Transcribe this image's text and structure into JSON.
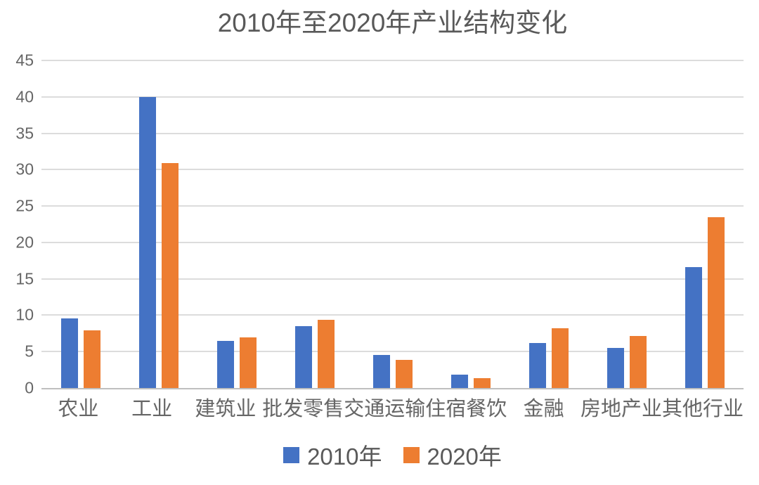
{
  "page": {
    "background": "#ffffff"
  },
  "chart_data": {
    "type": "bar",
    "title": "2010年至2020年产业结构变化",
    "xlabel": "",
    "ylabel": "",
    "categories": [
      "农业",
      "工业",
      "建筑业",
      "批发零售",
      "交通运输",
      "住宿餐饮",
      "金融",
      "房地产业",
      "其他行业"
    ],
    "series": [
      {
        "name": "2010年",
        "color": "#4472C4",
        "values": [
          9.6,
          40,
          6.5,
          8.5,
          4.5,
          1.8,
          6.2,
          5.5,
          16.6
        ]
      },
      {
        "name": "2020年",
        "color": "#ED7D31",
        "values": [
          7.9,
          30.9,
          7.0,
          9.4,
          3.9,
          1.4,
          8.2,
          7.1,
          23.5
        ]
      }
    ],
    "ylim": [
      0,
      45
    ],
    "yticks": [
      0,
      5,
      10,
      15,
      20,
      25,
      30,
      35,
      40,
      45
    ],
    "grid": true,
    "legend_position": "bottom",
    "colors": {
      "title_text": "#595959",
      "axis_text": "#666666",
      "axis_line": "#bfbfbf",
      "gridline": "#dcdcdc",
      "background": "#ffffff"
    }
  }
}
